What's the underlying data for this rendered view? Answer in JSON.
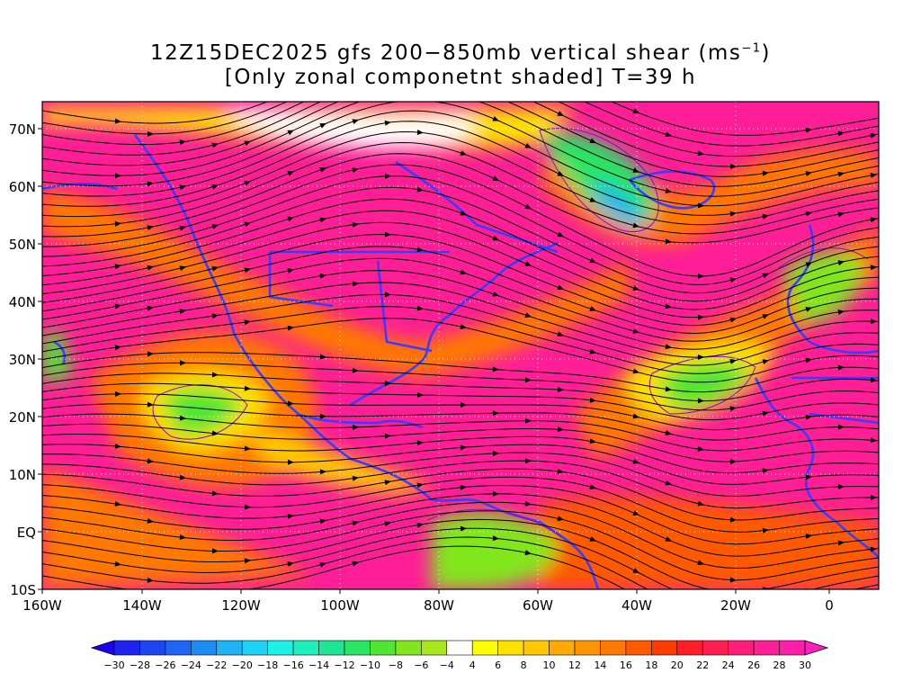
{
  "title": {
    "line1_prefix": "12Z15DEC2025 gfs 200−850mb vertical shear (ms",
    "line1_exp": "−1",
    "line1_suffix": ")",
    "line2": "[Only zonal componetnt shaded] T=39 h"
  },
  "map": {
    "lon_ticks": [
      "160W",
      "140W",
      "120W",
      "100W",
      "80W",
      "60W",
      "40W",
      "20W",
      "0"
    ],
    "lat_ticks": [
      "70N",
      "60N",
      "50N",
      "40N",
      "30N",
      "20N",
      "10N",
      "EQ",
      "10S"
    ]
  },
  "colorbar": {
    "labels": [
      "−30",
      "−28",
      "−26",
      "−24",
      "−22",
      "−20",
      "−18",
      "−16",
      "−14",
      "−12",
      "−10",
      "−8",
      "−6",
      "−4",
      "4",
      "6",
      "8",
      "10",
      "12",
      "14",
      "16",
      "18",
      "20",
      "22",
      "24",
      "26",
      "28",
      "30"
    ],
    "colors": [
      "#1e24f0",
      "#1e46f0",
      "#1e64f5",
      "#1e8cf5",
      "#1eb4f5",
      "#1ed2f5",
      "#1ef0e6",
      "#1ef0be",
      "#1ee696",
      "#28e664",
      "#50e632",
      "#82e61e",
      "#aae61e",
      "#ffffff",
      "#ffff00",
      "#ffe100",
      "#ffc800",
      "#ffaa00",
      "#ff9600",
      "#ff7800",
      "#ff5a00",
      "#ff3c00",
      "#ff1e28",
      "#ff1e50",
      "#ff1e78",
      "#ff1e96",
      "#ff1eaa"
    ],
    "under_color": "#1e00f0",
    "over_color": "#ff1ebe"
  },
  "colors": {
    "shear_high": "#ff1e96",
    "shear_mid": "#ff5a00",
    "shear_low": "#ffe100",
    "shear_neg": "#50e632",
    "coastline": "#3c3cff",
    "contour": "#a000c8",
    "streamline": "#000000"
  }
}
